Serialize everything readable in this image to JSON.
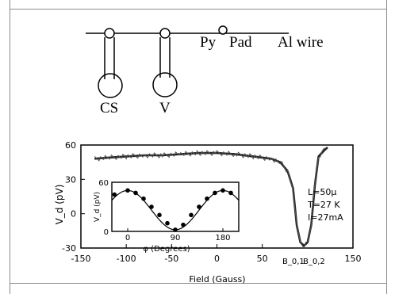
{
  "schematic": {
    "labels": {
      "py": "Py",
      "pad": "Pad",
      "al_wire": "Al wire",
      "cs": "CS",
      "v": "V"
    }
  },
  "chart_data": [
    {
      "type": "line",
      "title": "",
      "xlabel": "Field (Gauss)",
      "ylabel": "V_d (pV)",
      "xlim": [
        -150,
        150
      ],
      "ylim": [
        -30,
        60
      ],
      "x_ticks": [
        -150,
        -100,
        -50,
        0,
        50,
        150
      ],
      "x_tick_labels": [
        "-150",
        "-100",
        "-50",
        "0",
        "50",
        "150"
      ],
      "y_ticks": [
        60,
        30,
        0,
        -30
      ],
      "y_tick_labels": [
        "60",
        "30",
        "0",
        "-30"
      ],
      "extra_x_labels": [
        "B_0,1",
        "B_0,2"
      ],
      "grid": false,
      "series": [
        {
          "x": [
            -135,
            -120,
            -100,
            -80,
            -60,
            -40,
            -20,
            0,
            20,
            40,
            60,
            70,
            78,
            84,
            88,
            92,
            96,
            100,
            104,
            108,
            112,
            118,
            122
          ],
          "y": [
            48,
            49,
            50,
            51,
            51,
            52,
            53,
            53,
            52,
            50,
            48,
            45,
            37,
            22,
            -10,
            -25,
            -28,
            -25,
            -10,
            25,
            50,
            55,
            58
          ]
        }
      ],
      "annotations": [
        "L=50μ",
        "T=27 K",
        "I=27mA"
      ]
    },
    {
      "type": "line",
      "title": "",
      "xlabel": "φ (Degrees)",
      "ylabel": "V_d (pV)",
      "xlim": [
        -30,
        210
      ],
      "ylim": [
        0,
        60
      ],
      "x_ticks": [
        0,
        90,
        180
      ],
      "x_tick_labels": [
        "0",
        "90",
        "180"
      ],
      "y_ticks": [
        0,
        60
      ],
      "y_tick_labels": [
        "0",
        "60"
      ],
      "series": [
        {
          "x": [
            -25,
            0,
            15,
            30,
            45,
            60,
            75,
            90,
            105,
            120,
            135,
            150,
            165,
            180,
            195
          ],
          "y": [
            45,
            50,
            47,
            40,
            30,
            20,
            10,
            2,
            8,
            20,
            30,
            40,
            47,
            50,
            47
          ]
        }
      ]
    }
  ]
}
